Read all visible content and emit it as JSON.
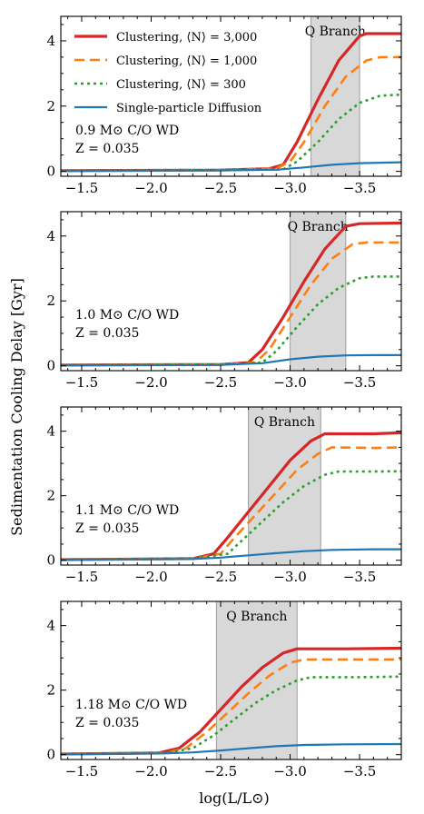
{
  "figure": {
    "ylabel": "Sedimentation Cooling Delay [Gyr]",
    "xlabel": "log(L/L⊙)"
  },
  "legend": {
    "placement": "top-left (first panel)",
    "entries": [
      {
        "label": "Clustering, ⟨N⟩ = 3,000",
        "color": "#d62728",
        "style": "solid"
      },
      {
        "label": "Clustering, ⟨N⟩ = 1,000",
        "color": "#ff7f0e",
        "style": "dashed"
      },
      {
        "label": "Clustering, ⟨N⟩ = 300",
        "color": "#2ca02c",
        "style": "dotted"
      },
      {
        "label": "Single-particle Diffusion",
        "color": "#1f77b4",
        "style": "solid"
      }
    ]
  },
  "chart_data": [
    {
      "type": "line",
      "panel_label": "0.9 M⊙ C/O WD",
      "metallicity": "Z = 0.035",
      "band_label": "Q Branch",
      "band": [
        -3.15,
        -3.5
      ],
      "xlim": [
        -1.35,
        -3.8
      ],
      "ylim": [
        -0.15,
        4.75
      ],
      "xticks": [
        -1.5,
        -2.0,
        -2.5,
        -3.0,
        -3.5
      ],
      "yticks": [
        0,
        2,
        4
      ],
      "series": [
        {
          "name": "Clustering, ⟨N⟩ = 3,000",
          "x": [
            -1.35,
            -2.5,
            -2.85,
            -2.95,
            -3.05,
            -3.2,
            -3.35,
            -3.5,
            -3.55,
            -3.8
          ],
          "y": [
            0.02,
            0.04,
            0.08,
            0.2,
            0.9,
            2.2,
            3.4,
            4.15,
            4.22,
            4.22
          ]
        },
        {
          "name": "Clustering, ⟨N⟩ = 1,000",
          "x": [
            -1.35,
            -2.5,
            -2.9,
            -3.0,
            -3.1,
            -3.25,
            -3.4,
            -3.55,
            -3.65,
            -3.8
          ],
          "y": [
            0.02,
            0.04,
            0.08,
            0.3,
            0.9,
            2.0,
            2.9,
            3.4,
            3.5,
            3.5
          ]
        },
        {
          "name": "Clustering, ⟨N⟩ = 300",
          "x": [
            -1.35,
            -2.5,
            -2.95,
            -3.05,
            -3.2,
            -3.35,
            -3.5,
            -3.65,
            -3.8
          ],
          "y": [
            0.02,
            0.04,
            0.06,
            0.3,
            0.9,
            1.6,
            2.1,
            2.32,
            2.35
          ]
        },
        {
          "name": "Single-particle Diffusion",
          "x": [
            -1.35,
            -2.5,
            -2.9,
            -3.1,
            -3.3,
            -3.5,
            -3.8
          ],
          "y": [
            0.02,
            0.03,
            0.05,
            0.12,
            0.2,
            0.25,
            0.28
          ]
        }
      ]
    },
    {
      "type": "line",
      "panel_label": "1.0 M⊙ C/O WD",
      "metallicity": "Z = 0.035",
      "band_label": "Q Branch",
      "band": [
        -3.0,
        -3.4
      ],
      "xlim": [
        -1.35,
        -3.8
      ],
      "ylim": [
        -0.15,
        4.75
      ],
      "xticks": [
        -1.5,
        -2.0,
        -2.5,
        -3.0,
        -3.5
      ],
      "yticks": [
        0,
        2,
        4
      ],
      "series": [
        {
          "name": "Clustering, ⟨N⟩ = 3,000",
          "x": [
            -1.35,
            -2.5,
            -2.7,
            -2.8,
            -2.95,
            -3.1,
            -3.25,
            -3.4,
            -3.5,
            -3.8
          ],
          "y": [
            0.02,
            0.04,
            0.1,
            0.5,
            1.5,
            2.6,
            3.6,
            4.3,
            4.38,
            4.4
          ]
        },
        {
          "name": "Clustering, ⟨N⟩ = 1,000",
          "x": [
            -1.35,
            -2.5,
            -2.75,
            -2.85,
            -3.0,
            -3.15,
            -3.3,
            -3.45,
            -3.55,
            -3.8
          ],
          "y": [
            0.02,
            0.04,
            0.1,
            0.5,
            1.5,
            2.5,
            3.3,
            3.75,
            3.8,
            3.8
          ]
        },
        {
          "name": "Clustering, ⟨N⟩ = 300",
          "x": [
            -1.35,
            -2.5,
            -2.8,
            -2.9,
            -3.05,
            -3.2,
            -3.35,
            -3.5,
            -3.6,
            -3.8
          ],
          "y": [
            0.02,
            0.04,
            0.1,
            0.45,
            1.2,
            1.9,
            2.4,
            2.7,
            2.75,
            2.75
          ]
        },
        {
          "name": "Single-particle Diffusion",
          "x": [
            -1.35,
            -2.5,
            -2.8,
            -3.0,
            -3.2,
            -3.4,
            -3.6,
            -3.8
          ],
          "y": [
            0.02,
            0.03,
            0.08,
            0.2,
            0.28,
            0.32,
            0.33,
            0.33
          ]
        }
      ]
    },
    {
      "type": "line",
      "panel_label": "1.1 M⊙ C/O WD",
      "metallicity": "Z = 0.035",
      "band_label": "Q Branch",
      "band": [
        -2.7,
        -3.22
      ],
      "xlim": [
        -1.35,
        -3.8
      ],
      "ylim": [
        -0.15,
        4.75
      ],
      "xticks": [
        -1.5,
        -2.0,
        -2.5,
        -3.0,
        -3.5
      ],
      "yticks": [
        0,
        2,
        4
      ],
      "series": [
        {
          "name": "Clustering, ⟨N⟩ = 3,000",
          "x": [
            -1.35,
            -2.3,
            -2.45,
            -2.55,
            -2.7,
            -2.85,
            -3.0,
            -3.15,
            -3.25,
            -3.6,
            -3.8
          ],
          "y": [
            0.02,
            0.05,
            0.2,
            0.7,
            1.5,
            2.3,
            3.1,
            3.7,
            3.92,
            3.92,
            3.95
          ]
        },
        {
          "name": "Clustering, ⟨N⟩ = 1,000",
          "x": [
            -1.35,
            -2.3,
            -2.5,
            -2.6,
            -2.75,
            -2.9,
            -3.05,
            -3.2,
            -3.3,
            -3.6,
            -3.8
          ],
          "y": [
            0.02,
            0.05,
            0.2,
            0.7,
            1.4,
            2.1,
            2.8,
            3.3,
            3.5,
            3.48,
            3.5
          ]
        },
        {
          "name": "Clustering, ⟨N⟩ = 300",
          "x": [
            -1.35,
            -2.3,
            -2.55,
            -2.65,
            -2.8,
            -2.95,
            -3.1,
            -3.25,
            -3.35,
            -3.6,
            -3.8
          ],
          "y": [
            0.02,
            0.05,
            0.2,
            0.6,
            1.2,
            1.8,
            2.3,
            2.65,
            2.75,
            2.75,
            2.76
          ]
        },
        {
          "name": "Single-particle Diffusion",
          "x": [
            -1.35,
            -2.3,
            -2.5,
            -2.7,
            -2.9,
            -3.1,
            -3.3,
            -3.6,
            -3.8
          ],
          "y": [
            0.02,
            0.04,
            0.08,
            0.15,
            0.22,
            0.28,
            0.32,
            0.34,
            0.34
          ]
        }
      ]
    },
    {
      "type": "line",
      "panel_label": "1.18 M⊙ C/O WD",
      "metallicity": "Z = 0.035",
      "band_label": "Q Branch",
      "band": [
        -2.47,
        -3.05
      ],
      "xlim": [
        -1.35,
        -3.8
      ],
      "ylim": [
        -0.15,
        4.75
      ],
      "xticks": [
        -1.5,
        -2.0,
        -2.5,
        -3.0,
        -3.5
      ],
      "yticks": [
        0,
        2,
        4
      ],
      "series": [
        {
          "name": "Clustering, ⟨N⟩ = 3,000",
          "x": [
            -1.35,
            -2.05,
            -2.2,
            -2.35,
            -2.5,
            -2.65,
            -2.8,
            -2.95,
            -3.05,
            -3.4,
            -3.8
          ],
          "y": [
            0.02,
            0.05,
            0.2,
            0.7,
            1.4,
            2.1,
            2.7,
            3.15,
            3.28,
            3.28,
            3.3
          ]
        },
        {
          "name": "Clustering, ⟨N⟩ = 1,000",
          "x": [
            -1.35,
            -2.1,
            -2.25,
            -2.4,
            -2.55,
            -2.7,
            -2.85,
            -3.0,
            -3.1,
            -3.4,
            -3.8
          ],
          "y": [
            0.02,
            0.05,
            0.2,
            0.7,
            1.3,
            1.9,
            2.45,
            2.85,
            2.95,
            2.95,
            2.95
          ]
        },
        {
          "name": "Clustering, ⟨N⟩ = 300",
          "x": [
            -1.35,
            -2.1,
            -2.3,
            -2.45,
            -2.6,
            -2.75,
            -2.9,
            -3.05,
            -3.15,
            -3.5,
            -3.8
          ],
          "y": [
            0.02,
            0.05,
            0.2,
            0.6,
            1.1,
            1.6,
            2.0,
            2.3,
            2.4,
            2.4,
            2.42
          ]
        },
        {
          "name": "Single-particle Diffusion",
          "x": [
            -1.35,
            -2.1,
            -2.3,
            -2.5,
            -2.7,
            -2.9,
            -3.1,
            -3.4,
            -3.8
          ],
          "y": [
            0.02,
            0.04,
            0.07,
            0.13,
            0.2,
            0.26,
            0.3,
            0.32,
            0.33
          ]
        }
      ]
    }
  ]
}
